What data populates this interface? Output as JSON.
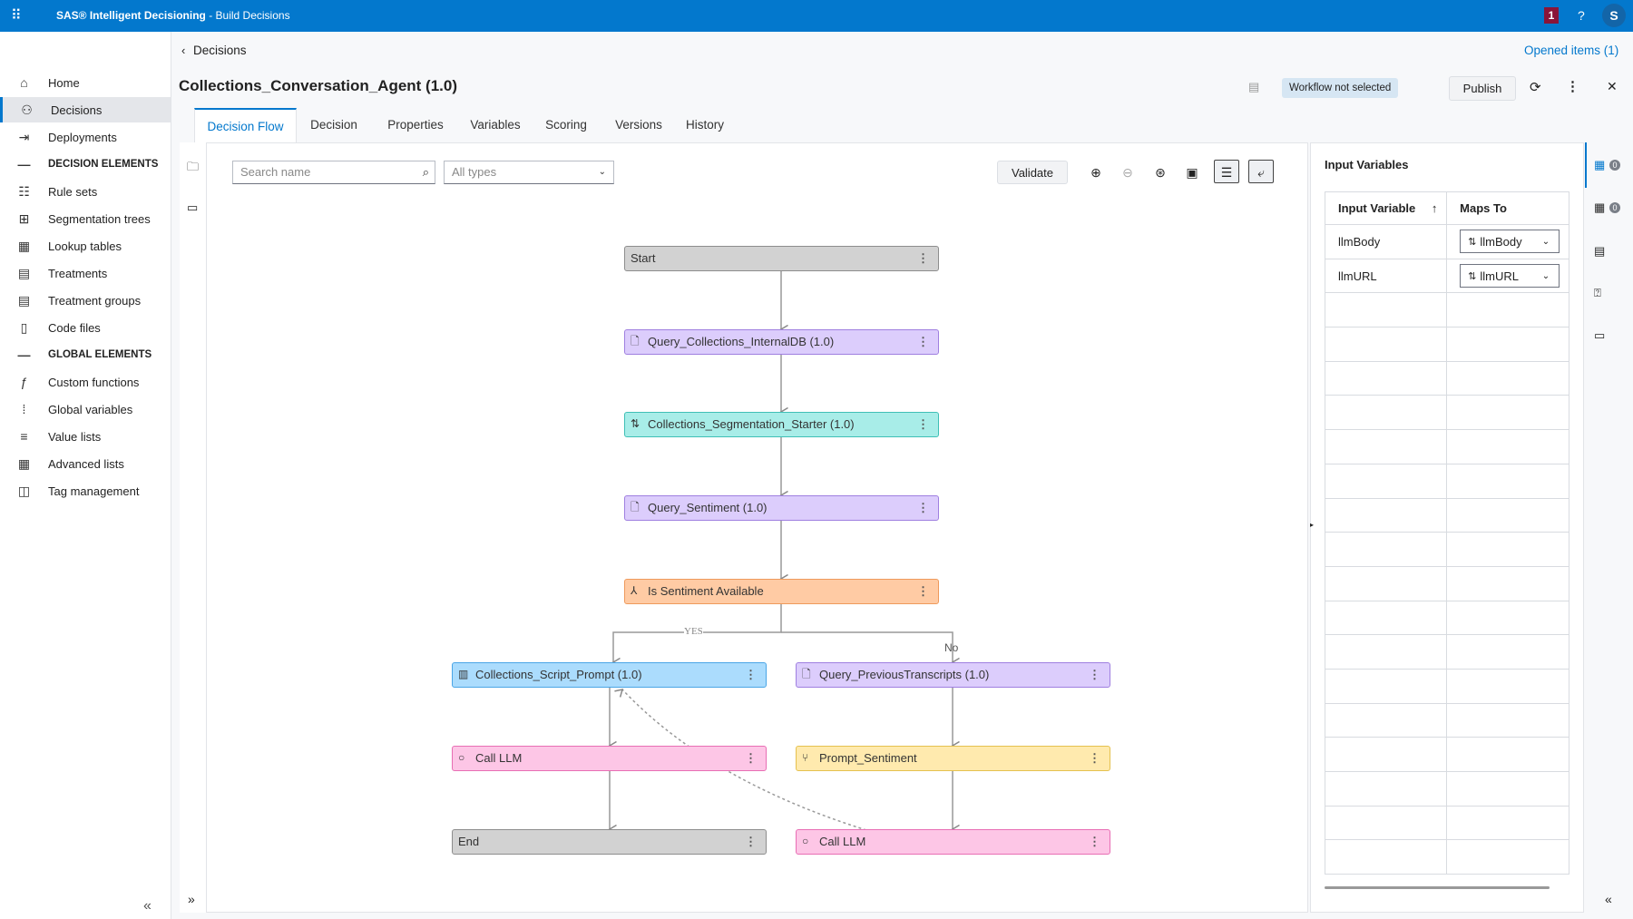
{
  "topbar": {
    "app_name": "SAS® Intelligent Decisioning",
    "separator": " - ",
    "page": "Build Decisions",
    "notification_count": "1",
    "help": "?",
    "avatar": "S"
  },
  "sidebar": {
    "items": [
      {
        "label": "Home",
        "icon": "home-icon",
        "glyph": "⌂"
      },
      {
        "label": "Decisions",
        "icon": "decisions-icon",
        "glyph": "⚇",
        "selected": true
      },
      {
        "label": "Deployments",
        "icon": "deployments-icon",
        "glyph": "⇥"
      },
      {
        "label": "DECISION ELEMENTS",
        "header": true,
        "glyph": "—"
      },
      {
        "label": "Rule sets",
        "icon": "rule-sets-icon",
        "glyph": "☷"
      },
      {
        "label": "Segmentation trees",
        "icon": "segmentation-trees-icon",
        "glyph": "⊞"
      },
      {
        "label": "Lookup tables",
        "icon": "lookup-tables-icon",
        "glyph": "▦"
      },
      {
        "label": "Treatments",
        "icon": "treatments-icon",
        "glyph": "▤"
      },
      {
        "label": "Treatment groups",
        "icon": "treatment-groups-icon",
        "glyph": "▤"
      },
      {
        "label": "Code files",
        "icon": "code-files-icon",
        "glyph": "▯"
      },
      {
        "label": "GLOBAL ELEMENTS",
        "header": true,
        "glyph": "—"
      },
      {
        "label": "Custom functions",
        "icon": "custom-functions-icon",
        "glyph": "ƒ"
      },
      {
        "label": "Global variables",
        "icon": "global-variables-icon",
        "glyph": "⁞"
      },
      {
        "label": "Value lists",
        "icon": "value-lists-icon",
        "glyph": "≡"
      },
      {
        "label": "Advanced lists",
        "icon": "advanced-lists-icon",
        "glyph": "▦"
      },
      {
        "label": "Tag management",
        "icon": "tag-icon",
        "glyph": "◫"
      }
    ],
    "collapse": "«"
  },
  "header": {
    "breadcrumb": "Decisions",
    "opened_items": "Opened items (1)",
    "title": "Collections_Conversation_Agent (1.0)",
    "workflow_status": "Workflow not selected",
    "publish": "Publish"
  },
  "tabs": [
    "Decision Flow",
    "Decision",
    "Properties",
    "Variables",
    "Scoring",
    "Versions",
    "History"
  ],
  "toolbar": {
    "search_placeholder": "Search name",
    "type_filter": "All types",
    "validate": "Validate"
  },
  "flow": {
    "nodes": [
      {
        "label": "Start",
        "color": "#d2d2d2",
        "border": "#8d8d8d",
        "icon": ""
      },
      {
        "label": "Query_Collections_InternalDB (1.0)",
        "color": "#dccdfc",
        "border": "#9f7fe0",
        "icon": "query-icon"
      },
      {
        "label": "Collections_Segmentation_Starter (1.0)",
        "color": "#a8ede8",
        "border": "#3fbfb6",
        "icon": "segmentation-icon"
      },
      {
        "label": "Query_Sentiment (1.0)",
        "color": "#dccdfc",
        "border": "#9f7fe0",
        "icon": "query-icon"
      },
      {
        "label": "Is Sentiment Available",
        "color": "#ffcba4",
        "border": "#ee9a5c",
        "icon": "branch-icon"
      },
      {
        "label": "Collections_Script_Prompt (1.0)",
        "color": "#abdcfd",
        "border": "#4aa5e6",
        "icon": "prompt-icon"
      },
      {
        "label": "Query_PreviousTranscripts (1.0)",
        "color": "#dccdfc",
        "border": "#9f7fe0",
        "icon": "query-icon"
      },
      {
        "label": "Call LLM",
        "color": "#fdc6e6",
        "border": "#e86eb4",
        "icon": "circle-icon"
      },
      {
        "label": "Prompt_Sentiment",
        "color": "#ffeaae",
        "border": "#e5c14f",
        "icon": "model-icon"
      },
      {
        "label": "End",
        "color": "#d2d2d2",
        "border": "#8d8d8d",
        "icon": ""
      },
      {
        "label": "Call LLM",
        "color": "#fdc6e6",
        "border": "#e86eb4",
        "icon": "circle-icon"
      }
    ],
    "yes_label": "YES",
    "no_label": "No"
  },
  "input_panel": {
    "title": "Input Variables",
    "columns": [
      "Input Variable",
      "Maps To"
    ],
    "rows": [
      {
        "variable": "llmBody",
        "maps_to": "llmBody"
      },
      {
        "variable": "llmURL",
        "maps_to": "llmURL"
      }
    ],
    "counts": [
      "0",
      "0"
    ]
  }
}
